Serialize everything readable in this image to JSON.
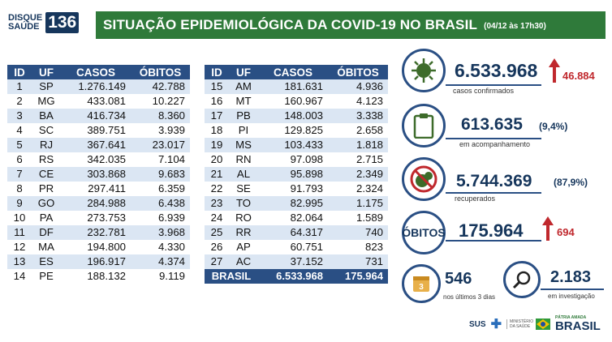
{
  "logo": {
    "line1": "DISQUE",
    "line2": "SAÚDE",
    "number": "136"
  },
  "header": {
    "title": "SITUAÇÃO EPIDEMIOLÓGICA DA COVID-19 NO BRASIL",
    "date": "(04/12 às 17h30)"
  },
  "table": {
    "columns": [
      "ID",
      "UF",
      "CASOS",
      "ÓBITOS"
    ],
    "left_rows": [
      [
        "1",
        "SP",
        "1.276.149",
        "42.788"
      ],
      [
        "2",
        "MG",
        "433.081",
        "10.227"
      ],
      [
        "3",
        "BA",
        "416.734",
        "8.360"
      ],
      [
        "4",
        "SC",
        "389.751",
        "3.939"
      ],
      [
        "5",
        "RJ",
        "367.641",
        "23.017"
      ],
      [
        "6",
        "RS",
        "342.035",
        "7.104"
      ],
      [
        "7",
        "CE",
        "303.868",
        "9.683"
      ],
      [
        "8",
        "PR",
        "297.411",
        "6.359"
      ],
      [
        "9",
        "GO",
        "284.988",
        "6.438"
      ],
      [
        "10",
        "PA",
        "273.753",
        "6.939"
      ],
      [
        "11",
        "DF",
        "232.781",
        "3.968"
      ],
      [
        "12",
        "MA",
        "194.800",
        "4.330"
      ],
      [
        "13",
        "ES",
        "196.917",
        "4.374"
      ],
      [
        "14",
        "PE",
        "188.132",
        "9.119"
      ]
    ],
    "right_rows": [
      [
        "15",
        "AM",
        "181.631",
        "4.936"
      ],
      [
        "16",
        "MT",
        "160.967",
        "4.123"
      ],
      [
        "17",
        "PB",
        "148.003",
        "3.338"
      ],
      [
        "18",
        "PI",
        "129.825",
        "2.658"
      ],
      [
        "19",
        "MS",
        "103.433",
        "1.818"
      ],
      [
        "20",
        "RN",
        "97.098",
        "2.715"
      ],
      [
        "21",
        "AL",
        "95.898",
        "2.349"
      ],
      [
        "22",
        "SE",
        "91.793",
        "2.324"
      ],
      [
        "23",
        "TO",
        "82.995",
        "1.175"
      ],
      [
        "24",
        "RO",
        "82.064",
        "1.589"
      ],
      [
        "25",
        "RR",
        "64.317",
        "740"
      ],
      [
        "26",
        "AP",
        "60.751",
        "823"
      ],
      [
        "27",
        "AC",
        "37.152",
        "731"
      ]
    ],
    "total": {
      "label": "BRASIL",
      "casos": "6.533.968",
      "obitos": "175.964"
    }
  },
  "stats": {
    "confirmed": {
      "value": "6.533.968",
      "delta": "46.884",
      "label": "casos confirmados",
      "icon": "virus-icon"
    },
    "monitoring": {
      "value": "613.635",
      "pct": "(9,4%)",
      "label": "em acompanhamento",
      "icon": "clipboard-icon"
    },
    "recovered": {
      "value": "5.744.369",
      "pct": "(87,9%)",
      "label": "recuperados",
      "icon": "virus-crossed-icon"
    },
    "deaths": {
      "label_title": "ÓBITOS",
      "value": "175.964",
      "delta": "694"
    },
    "last3": {
      "value": "546",
      "label": "nos últimos 3 dias",
      "icon": "calendar-icon",
      "calendar_num": "3"
    },
    "investigation": {
      "value": "2.183",
      "label": "em investigação",
      "icon": "magnifier-icon"
    }
  },
  "footer": {
    "sus": "SUS",
    "ministry": "MINISTÉRIO DA SAÚDE",
    "brasil_small": "PÁTRIA AMADA",
    "brasil_big": "BRASIL"
  },
  "colors": {
    "header_green": "#2f7a3a",
    "table_blue": "#2a4f84",
    "stripe": "#dbe6f3",
    "delta_red": "#c0282d"
  }
}
